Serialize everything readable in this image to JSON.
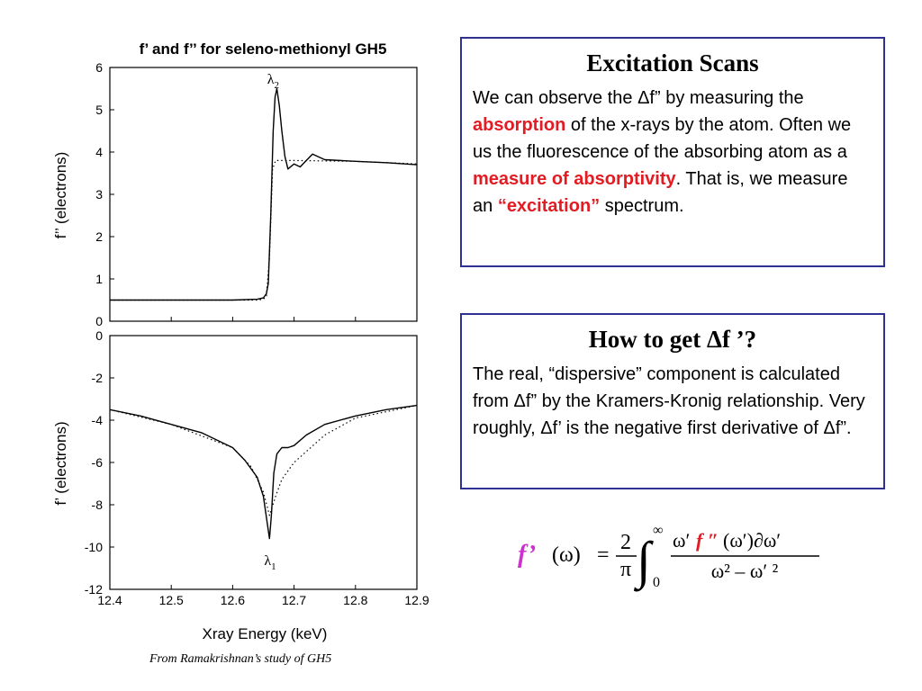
{
  "chart_data": [
    {
      "type": "line",
      "title": "f’ and f’’ for seleno-methionyl GH5",
      "ylabel": "f’’ (electrons)",
      "xlim": [
        12.4,
        12.9
      ],
      "ylim": [
        0,
        6
      ],
      "yticks": [
        0,
        1,
        2,
        3,
        4,
        5,
        6
      ],
      "annotation": {
        "text": "λ",
        "sub": "2",
        "x": 12.665,
        "y": 5.75
      },
      "series": [
        {
          "style": "solid",
          "x": [
            12.4,
            12.5,
            12.6,
            12.64,
            12.65,
            12.655,
            12.658,
            12.662,
            12.666,
            12.669,
            12.672,
            12.676,
            12.68,
            12.685,
            12.69,
            12.7,
            12.71,
            12.72,
            12.73,
            12.75,
            12.8,
            12.85,
            12.9
          ],
          "y": [
            0.5,
            0.5,
            0.5,
            0.52,
            0.55,
            0.65,
            0.9,
            2.5,
            4.5,
            5.3,
            5.5,
            5.1,
            4.5,
            3.9,
            3.6,
            3.72,
            3.65,
            3.8,
            3.95,
            3.82,
            3.78,
            3.75,
            3.7
          ]
        },
        {
          "style": "dotted",
          "x": [
            12.4,
            12.6,
            12.64,
            12.65,
            12.655,
            12.66,
            12.665,
            12.67,
            12.7,
            12.8,
            12.9
          ],
          "y": [
            0.5,
            0.5,
            0.5,
            0.52,
            0.6,
            1.5,
            3.6,
            3.8,
            3.8,
            3.78,
            3.72
          ]
        }
      ]
    },
    {
      "type": "line",
      "xlabel": "Xray Energy (keV)",
      "ylabel": "f’ (electrons)",
      "xlim": [
        12.4,
        12.9
      ],
      "ylim": [
        -12,
        0
      ],
      "yticks": [
        0,
        -2,
        -4,
        -6,
        -8,
        -10,
        -12
      ],
      "xticks": [
        "12.4",
        "12.5",
        "12.6",
        "12.7",
        "12.8",
        "12.9"
      ],
      "annotation": {
        "text": "λ",
        "sub": "1",
        "x": 12.66,
        "y": -10.6
      },
      "series": [
        {
          "style": "solid",
          "x": [
            12.4,
            12.45,
            12.5,
            12.55,
            12.6,
            12.62,
            12.64,
            12.65,
            12.655,
            12.66,
            12.663,
            12.667,
            12.672,
            12.68,
            12.69,
            12.7,
            12.72,
            12.75,
            12.8,
            12.85,
            12.9
          ],
          "y": [
            -3.5,
            -3.8,
            -4.2,
            -4.6,
            -5.3,
            -5.9,
            -6.7,
            -7.6,
            -8.6,
            -9.6,
            -8.5,
            -6.5,
            -5.6,
            -5.3,
            -5.3,
            -5.2,
            -4.7,
            -4.2,
            -3.8,
            -3.5,
            -3.3
          ]
        },
        {
          "style": "dotted",
          "x": [
            12.4,
            12.5,
            12.6,
            12.63,
            12.65,
            12.66,
            12.67,
            12.68,
            12.7,
            12.75,
            12.8,
            12.9
          ],
          "y": [
            -3.5,
            -4.2,
            -5.3,
            -6.2,
            -7.4,
            -8.5,
            -7.6,
            -6.8,
            -6.0,
            -4.7,
            -3.9,
            -3.3
          ]
        }
      ]
    }
  ],
  "box1": {
    "title": "Excitation Scans",
    "t1": "We can observe the Δf” by measuring the ",
    "r1": "absorption",
    "t2": " of the x-rays by the atom. Often we us the fluorescence of the absorbing atom as a ",
    "r2": "measure of absorptivity",
    "t3": ". That is, we measure an ",
    "r3": "“excitation”",
    "t4": " spectrum."
  },
  "box2": {
    "title": "How to get Δf ’?",
    "text": "The real, “dispersive” component is calculated from Δf” by the Kramers-Kronig relationship.  Very roughly, Δf’ is the negative first derivative of Δf”."
  },
  "formula": {
    "lhs": "f’",
    "omega": "(ω)",
    "eq": "=",
    "two": "2",
    "pi": "π",
    "upper": "∞",
    "lower": "0",
    "num_a": "ω′",
    "num_f": "f ″",
    "num_b": "(ω′)∂ω′",
    "den": "ω² – ω′ ²"
  },
  "caption": "From Ramakrishnan’s study of GH5",
  "colors": {
    "box_border": "#2e3192",
    "highlight": "#e31b23",
    "f_prime": "#cc33cc",
    "f_double_prime": "#e31b23"
  }
}
